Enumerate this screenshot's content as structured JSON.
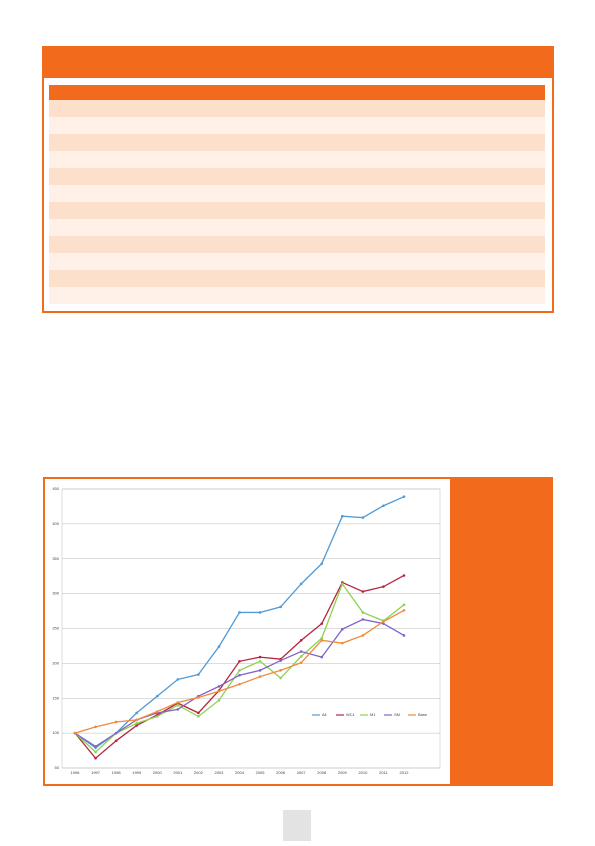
{
  "chart_data": {
    "type": "line",
    "categories": [
      "1996",
      "1997",
      "1998",
      "1999",
      "2000",
      "2001",
      "2002",
      "2003",
      "2004",
      "2005",
      "2006",
      "2007",
      "2008",
      "2009",
      "2010",
      "2011",
      "2012"
    ],
    "series": [
      {
        "name": "All",
        "color": "#4f9ad6",
        "values": [
          100,
          79,
          100,
          129,
          153,
          177,
          184,
          224,
          273,
          273,
          281,
          314,
          343,
          411,
          409,
          426,
          439
        ]
      },
      {
        "name": "WC1",
        "color": "#b5243f",
        "values": [
          100,
          64,
          89,
          111,
          126,
          143,
          129,
          161,
          203,
          209,
          206,
          233,
          257,
          316,
          303,
          310,
          326
        ]
      },
      {
        "name": "M1",
        "color": "#8fd14f",
        "values": [
          100,
          73,
          100,
          114,
          124,
          140,
          124,
          147,
          190,
          203,
          179,
          210,
          236,
          314,
          273,
          261,
          284
        ]
      },
      {
        "name": "SM",
        "color": "#8064c8",
        "values": [
          100,
          81,
          100,
          119,
          129,
          134,
          153,
          167,
          183,
          190,
          204,
          217,
          209,
          249,
          263,
          257,
          240
        ]
      },
      {
        "name": "Base",
        "color": "#f08a3c",
        "values": [
          100,
          109,
          116,
          119,
          131,
          144,
          151,
          160,
          170,
          181,
          190,
          201,
          233,
          229,
          240,
          260,
          276
        ]
      }
    ],
    "ylim": [
      50,
      450
    ],
    "yticks": [
      50,
      100,
      150,
      200,
      250,
      300,
      350,
      400,
      450
    ],
    "grid": true
  }
}
